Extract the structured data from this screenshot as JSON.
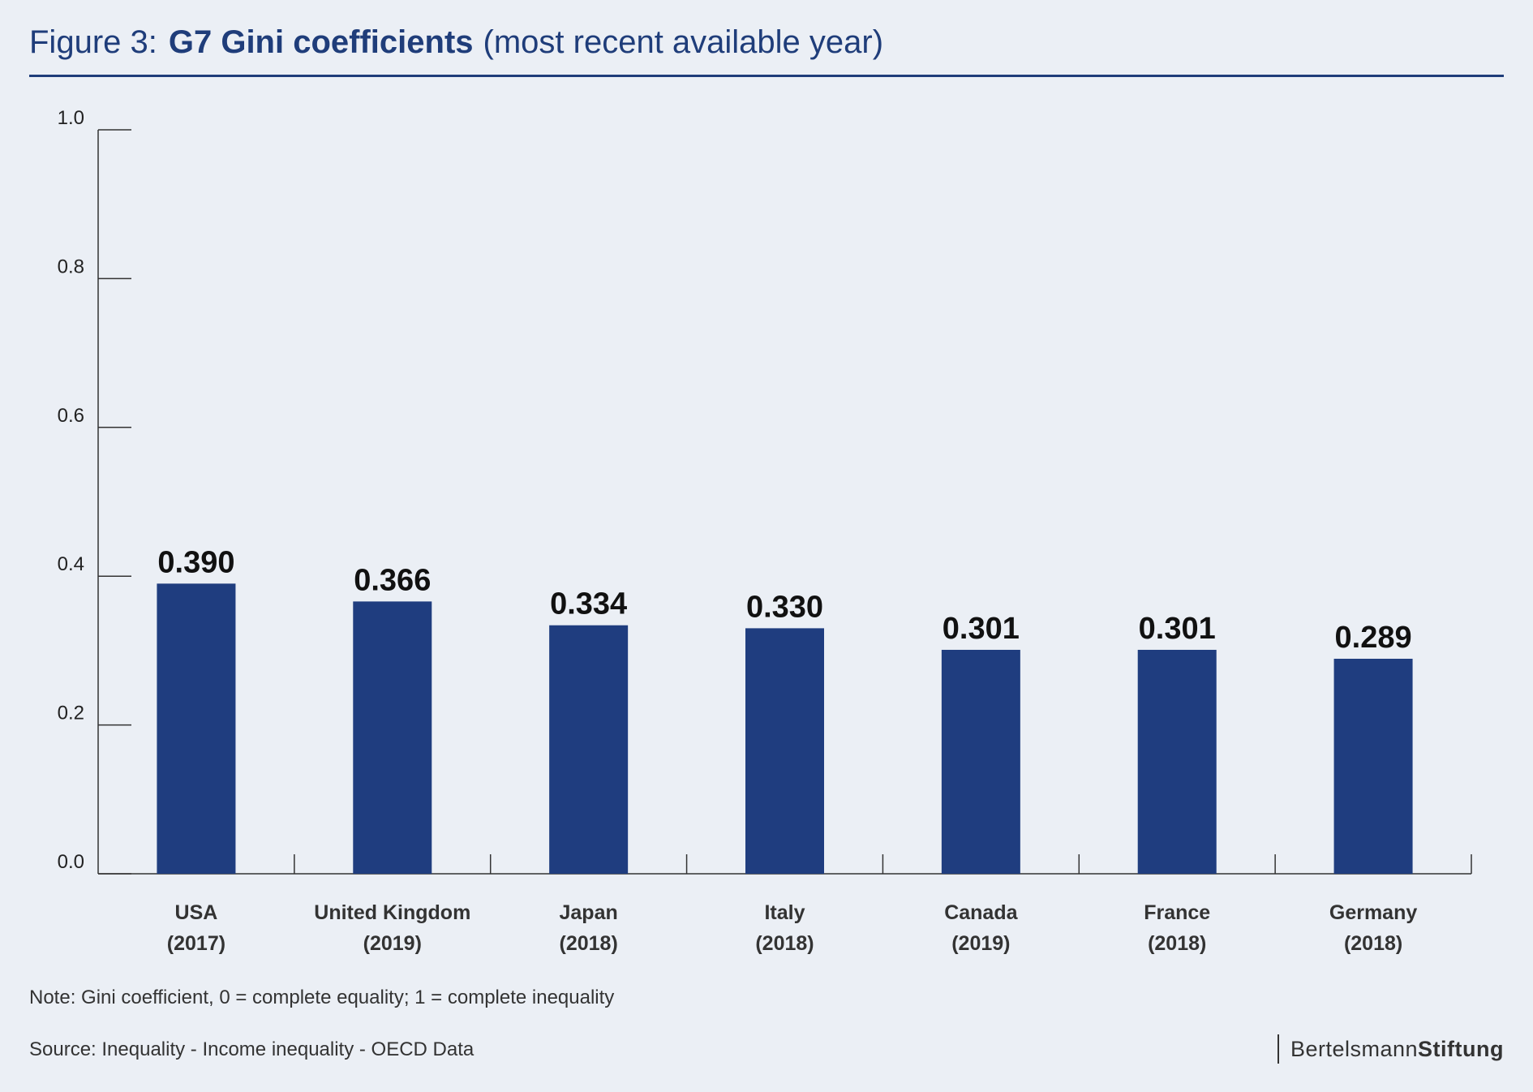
{
  "header": {
    "prefix": "Figure 3:",
    "title": "G7 Gini coefficients",
    "suffix": "(most recent available year)"
  },
  "chart_data": {
    "type": "bar",
    "categories": [
      [
        "USA",
        "(2017)"
      ],
      [
        "United Kingdom",
        "(2019)"
      ],
      [
        "Japan",
        "(2018)"
      ],
      [
        "Italy",
        "(2018)"
      ],
      [
        "Canada",
        "(2019)"
      ],
      [
        "France",
        "(2018)"
      ],
      [
        "Germany",
        "(2018)"
      ]
    ],
    "values": [
      0.39,
      0.366,
      0.334,
      0.33,
      0.301,
      0.301,
      0.289
    ],
    "value_labels": [
      "0.390",
      "0.366",
      "0.334",
      "0.330",
      "0.301",
      "0.301",
      "0.289"
    ],
    "ylim": [
      0,
      1.0
    ],
    "yticks": [
      0.0,
      0.2,
      0.4,
      0.6,
      0.8,
      1.0
    ],
    "ytick_labels": [
      "0.0",
      "0.2",
      "0.4",
      "0.6",
      "0.8",
      "1.0"
    ],
    "grid": false,
    "bar_color": "#1f3d7f"
  },
  "footer": {
    "note": "Note: Gini coefficient, 0 = complete equality; 1 = complete inequality",
    "source": "Source: Inequality - Income inequality - OECD Data",
    "logo_part1": "Bertelsmann",
    "logo_part2": "Stiftung"
  }
}
